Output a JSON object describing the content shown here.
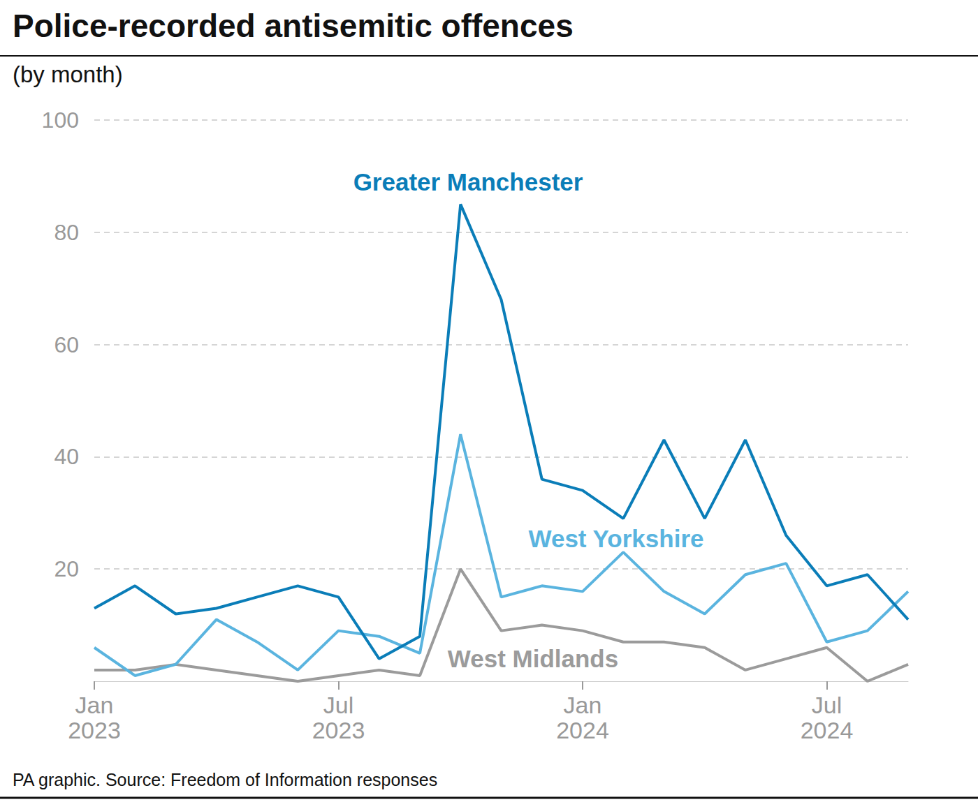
{
  "chart_data": {
    "type": "line",
    "title": "Police-recorded antisemitic offences",
    "subtitle": "(by month)",
    "source": "PA graphic. Source: Freedom of Information responses",
    "categories": [
      "Jan 2023",
      null,
      null,
      null,
      null,
      null,
      "Jul 2023",
      null,
      null,
      null,
      null,
      null,
      "Jan 2024",
      null,
      null,
      null,
      null,
      null,
      "Jul 2024",
      null,
      null
    ],
    "series": [
      {
        "name": "Greater Manchester",
        "color": "#0a7db8",
        "values": [
          13,
          17,
          12,
          13,
          15,
          17,
          15,
          4,
          8,
          85,
          68,
          36,
          34,
          29,
          43,
          29,
          43,
          26,
          17,
          19,
          11
        ]
      },
      {
        "name": "West Yorkshire",
        "color": "#5ab4df",
        "values": [
          6,
          1,
          3,
          11,
          7,
          2,
          9,
          8,
          5,
          44,
          15,
          17,
          16,
          23,
          16,
          12,
          19,
          21,
          7,
          9,
          16
        ]
      },
      {
        "name": "West Midlands",
        "color": "#9b9b9b",
        "values": [
          2,
          2,
          3,
          2,
          1,
          0,
          1,
          2,
          1,
          20,
          9,
          10,
          9,
          7,
          7,
          6,
          2,
          4,
          6,
          0,
          3
        ]
      }
    ],
    "ylim": [
      0,
      100
    ],
    "yticks": [
      20,
      40,
      60,
      80,
      100
    ],
    "grid": true
  }
}
